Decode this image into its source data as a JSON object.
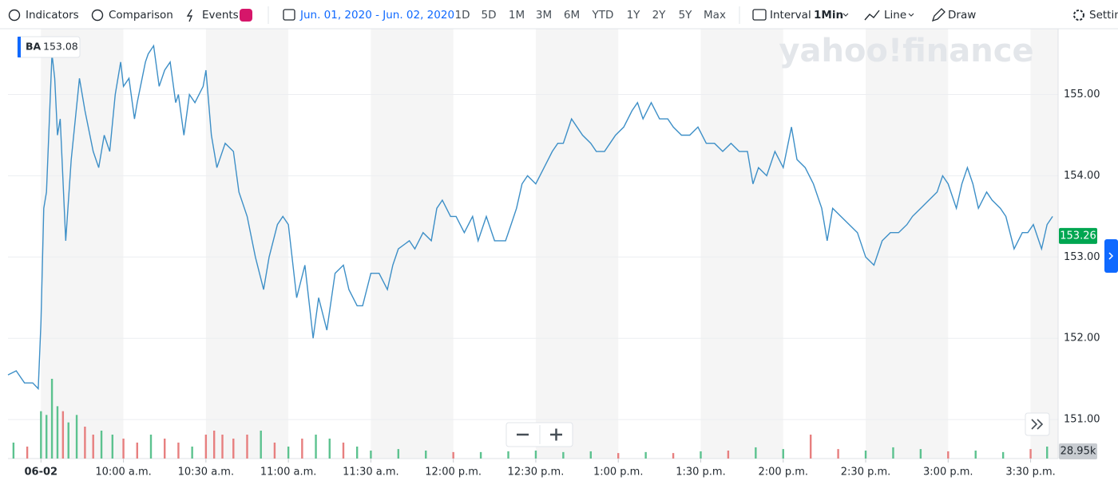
{
  "toolbar": {
    "indicators": "Indicators",
    "comparison": "Comparison",
    "events": "Events",
    "date_range": "Jun. 01, 2020 - Jun. 02, 2020",
    "ranges": [
      "1D",
      "5D",
      "1M",
      "3M",
      "6M",
      "YTD",
      "1Y",
      "2Y",
      "5Y",
      "Max"
    ],
    "interval": "Interval",
    "interval_value": "1Min",
    "chart_type": "Line",
    "draw": "Draw",
    "settings": "Settings"
  },
  "watermark": "yahoo!finance",
  "chart_data": {
    "type": "line",
    "legend": {
      "symbol": "BA",
      "value": 153.08
    },
    "last_price": 153.26,
    "color": "#3d8fc7",
    "x": [
      -12,
      -9,
      -6,
      -3,
      -1,
      0,
      1,
      2,
      4,
      5,
      6,
      7,
      9,
      11,
      14,
      16,
      19,
      21,
      23,
      25,
      27,
      29,
      30,
      32,
      34,
      35,
      38,
      39,
      41,
      43,
      45,
      47,
      49,
      50,
      52,
      54,
      56,
      59,
      60,
      62,
      64,
      67,
      70,
      72,
      75,
      78,
      81,
      83,
      86,
      88,
      90,
      93,
      96,
      98,
      99,
      101,
      104,
      107,
      110,
      112,
      115,
      117,
      120,
      123,
      126,
      128,
      130,
      134,
      136,
      139,
      142,
      144,
      146,
      149,
      151,
      154,
      157,
      159,
      162,
      165,
      169,
      171,
      173,
      175,
      177,
      180,
      183,
      186,
      188,
      190,
      193,
      195,
      197,
      200,
      202,
      205,
      207,
      209,
      212,
      215,
      217,
      219,
      222,
      225,
      228,
      230,
      233,
      236,
      239,
      242,
      245,
      248,
      251,
      254,
      257,
      259,
      261,
      264,
      267,
      270,
      273,
      275,
      278,
      281,
      284,
      286,
      288,
      291,
      294,
      297,
      300,
      303,
      306,
      309,
      312,
      315,
      317,
      320,
      323,
      326,
      328,
      330,
      333,
      335,
      337,
      339,
      341,
      344,
      346,
      349,
      351,
      354,
      357,
      359,
      361,
      364,
      366,
      368
    ],
    "values": [
      151.55,
      151.6,
      151.45,
      151.45,
      151.38,
      152.2,
      153.6,
      153.8,
      155.5,
      155.2,
      154.5,
      154.7,
      153.2,
      154.2,
      155.2,
      154.8,
      154.3,
      154.1,
      154.5,
      154.3,
      155,
      155.4,
      155.1,
      155.2,
      154.7,
      154.9,
      155.4,
      155.5,
      155.6,
      155.1,
      155.3,
      155.4,
      154.9,
      155,
      154.5,
      155,
      154.9,
      155.1,
      155.3,
      154.5,
      154.1,
      154.4,
      154.3,
      153.8,
      153.5,
      153,
      152.6,
      153,
      153.4,
      153.5,
      153.4,
      152.5,
      152.9,
      152.3,
      152,
      152.5,
      152.1,
      152.8,
      152.9,
      152.6,
      152.4,
      152.4,
      152.8,
      152.8,
      152.6,
      152.9,
      153.1,
      153.2,
      153.1,
      153.3,
      153.2,
      153.6,
      153.7,
      153.5,
      153.5,
      153.3,
      153.5,
      153.2,
      153.5,
      153.2,
      153.2,
      153.4,
      153.6,
      153.9,
      154,
      153.9,
      154.1,
      154.3,
      154.4,
      154.4,
      154.7,
      154.6,
      154.5,
      154.4,
      154.3,
      154.3,
      154.4,
      154.5,
      154.6,
      154.8,
      154.9,
      154.7,
      154.9,
      154.7,
      154.7,
      154.6,
      154.5,
      154.5,
      154.6,
      154.4,
      154.4,
      154.3,
      154.4,
      154.3,
      154.3,
      153.9,
      154.1,
      154,
      154.3,
      154.1,
      154.6,
      154.2,
      154.1,
      153.9,
      153.6,
      153.2,
      153.6,
      153.5,
      153.4,
      153.3,
      153,
      152.9,
      153.2,
      153.3,
      153.3,
      153.4,
      153.5,
      153.6,
      153.7,
      153.8,
      154,
      153.9,
      153.6,
      153.9,
      154.1,
      153.9,
      153.6,
      153.8,
      153.7,
      153.6,
      153.5,
      153.1,
      153.3,
      153.3,
      153.4,
      153.1,
      153.4,
      153.5
    ],
    "xlim": [
      -12,
      370
    ],
    "ylim": [
      150.52,
      155.81
    ],
    "xticks": [
      {
        "value": 0,
        "label": "06-02"
      },
      {
        "value": 30,
        "label": "10:00 a.m."
      },
      {
        "value": 60,
        "label": "10:30 a.m."
      },
      {
        "value": 90,
        "label": "11:00 a.m."
      },
      {
        "value": 120,
        "label": "11:30 a.m."
      },
      {
        "value": 150,
        "label": "12:00 p.m."
      },
      {
        "value": 180,
        "label": "12:30 p.m."
      },
      {
        "value": 210,
        "label": "1:00 p.m."
      },
      {
        "value": 240,
        "label": "1:30 p.m."
      },
      {
        "value": 270,
        "label": "2:00 p.m."
      },
      {
        "value": 300,
        "label": "2:30 p.m."
      },
      {
        "value": 330,
        "label": "3:00 p.m."
      },
      {
        "value": 360,
        "label": "3:30 p.m."
      }
    ],
    "yticks": [
      {
        "value": 151,
        "label": "151.00"
      },
      {
        "value": 152,
        "label": "152.00"
      },
      {
        "value": 153,
        "label": "153.00"
      },
      {
        "value": 154,
        "label": "154.00"
      },
      {
        "value": 155,
        "label": "155.00"
      }
    ],
    "grid": true,
    "volume": {
      "label": "28.95k",
      "ylim": [
        0,
        320
      ],
      "x": [
        -10,
        -5,
        0,
        2,
        4,
        6,
        8,
        10,
        13,
        16,
        19,
        22,
        26,
        30,
        35,
        40,
        45,
        50,
        55,
        60,
        63,
        66,
        70,
        75,
        80,
        85,
        90,
        95,
        100,
        105,
        110,
        115,
        120,
        130,
        140,
        150,
        160,
        170,
        180,
        190,
        200,
        210,
        220,
        230,
        240,
        250,
        260,
        270,
        280,
        290,
        300,
        310,
        320,
        330,
        340,
        350,
        360,
        366
      ],
      "values": [
        64,
        48,
        190,
        175,
        320,
        210,
        190,
        145,
        175,
        128,
        96,
        112,
        96,
        80,
        64,
        96,
        80,
        64,
        48,
        96,
        112,
        96,
        80,
        96,
        112,
        64,
        48,
        80,
        96,
        80,
        64,
        48,
        32,
        38,
        32,
        26,
        26,
        29,
        32,
        26,
        29,
        22,
        26,
        22,
        29,
        32,
        45,
        38,
        96,
        38,
        32,
        45,
        38,
        29,
        32,
        26,
        38,
        48
      ],
      "colors": [
        "#5cc28f",
        "#e77f7f",
        "#5cc28f",
        "#5cc28f",
        "#5cc28f",
        "#5cc28f",
        "#e77f7f",
        "#5cc28f",
        "#5cc28f",
        "#e77f7f",
        "#e77f7f",
        "#5cc28f",
        "#5cc28f",
        "#e77f7f",
        "#e77f7f",
        "#5cc28f",
        "#e77f7f",
        "#e77f7f",
        "#5cc28f",
        "#e77f7f",
        "#e77f7f",
        "#e77f7f",
        "#e77f7f",
        "#e77f7f",
        "#5cc28f",
        "#e77f7f",
        "#5cc28f",
        "#e77f7f",
        "#5cc28f",
        "#5cc28f",
        "#e77f7f",
        "#5cc28f",
        "#5cc28f",
        "#5cc28f",
        "#5cc28f",
        "#e77f7f",
        "#5cc28f",
        "#5cc28f",
        "#5cc28f",
        "#5cc28f",
        "#5cc28f",
        "#e77f7f",
        "#5cc28f",
        "#e77f7f",
        "#5cc28f",
        "#e77f7f",
        "#5cc28f",
        "#5cc28f",
        "#e77f7f",
        "#e77f7f",
        "#5cc28f",
        "#5cc28f",
        "#5cc28f",
        "#e77f7f",
        "#5cc28f",
        "#5cc28f",
        "#e77f7f",
        "#5cc28f"
      ]
    }
  }
}
